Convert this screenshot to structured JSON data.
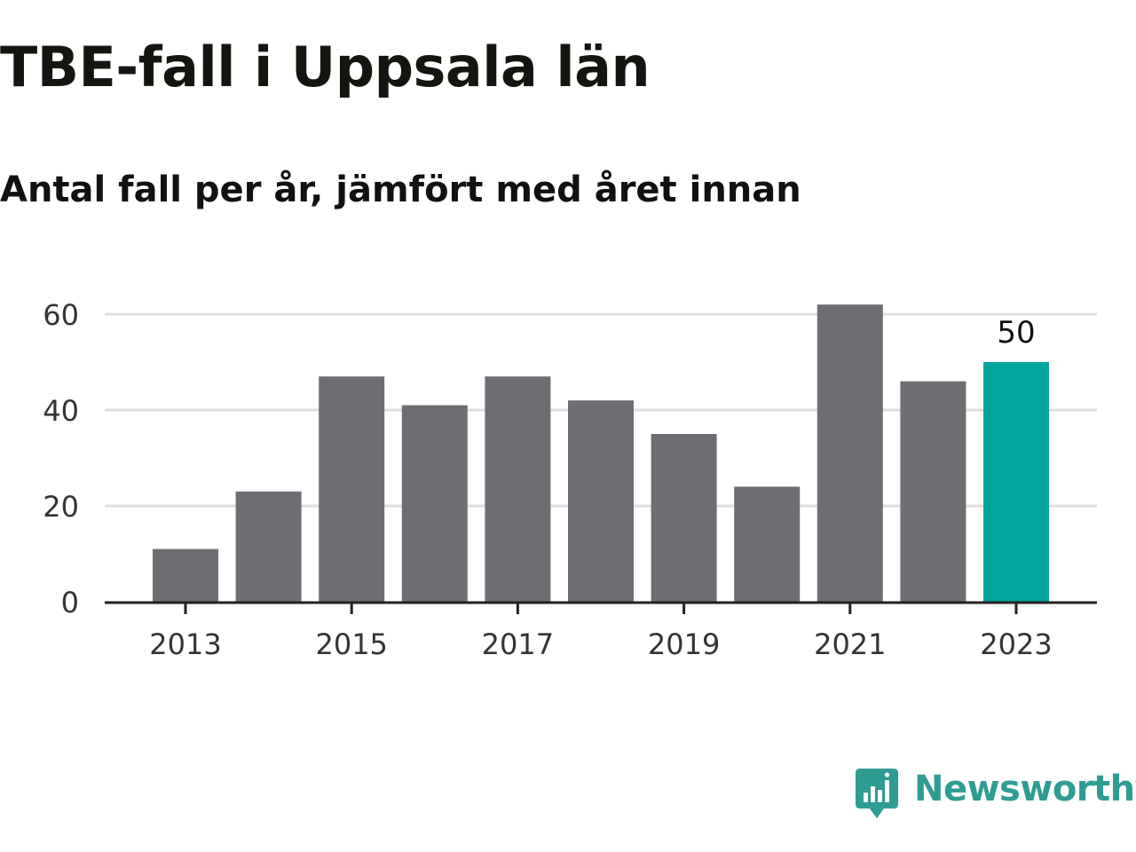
{
  "colors": {
    "bar_default": "#6e6d73",
    "bar_highlight": "#00a59b",
    "gridline": "#dddddd",
    "axis": "#222222",
    "brand": "#2f9c94"
  },
  "brand": {
    "name": "Newsworthy",
    "logo_icon": "bar-chart-speech-bubble-icon"
  },
  "chart_data": {
    "type": "bar",
    "title": "TBE-fall i Uppsala län",
    "subtitle": "Antal fall per år, jämfört med året innan",
    "xlabel": "",
    "ylabel": "",
    "categories": [
      "2013",
      "2014",
      "2015",
      "2016",
      "2017",
      "2018",
      "2019",
      "2020",
      "2021",
      "2022",
      "2023"
    ],
    "values": [
      11,
      23,
      47,
      41,
      47,
      42,
      35,
      24,
      62,
      46,
      50
    ],
    "highlight_index": 10,
    "data_labels": [
      {
        "index": 10,
        "text": "50"
      }
    ],
    "ylim": [
      0,
      60
    ],
    "yticks": [
      "0",
      "20",
      "40",
      "60"
    ],
    "xticks": [
      "2013",
      "2015",
      "2017",
      "2019",
      "2021",
      "2023"
    ],
    "grid": true,
    "legend": "none"
  }
}
